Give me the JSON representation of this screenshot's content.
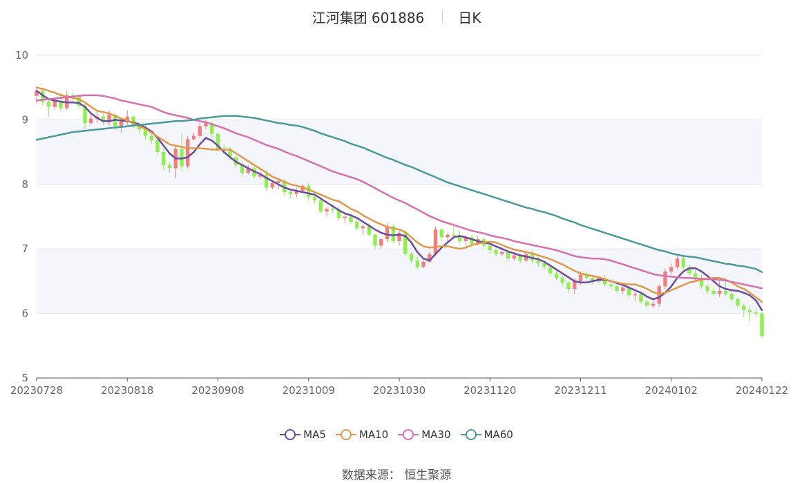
{
  "title": {
    "name": "江河集团 601886",
    "period": "日K"
  },
  "source": "数据来源： 恒生聚源",
  "colors": {
    "up": "#f08080",
    "down": "#90ee50",
    "ma5": "#6a4ba0",
    "ma10": "#e0984a",
    "ma30": "#d770b0",
    "ma60": "#4a9a9a",
    "band": "#f4f6fb",
    "grid": "#e3e7ef",
    "axis": "#555555",
    "label": "#666666"
  },
  "legend": [
    {
      "key": "ma5",
      "label": "MA5"
    },
    {
      "key": "ma10",
      "label": "MA10"
    },
    {
      "key": "ma30",
      "label": "MA30"
    },
    {
      "key": "ma60",
      "label": "MA60"
    }
  ],
  "chart_data": {
    "type": "candlestick",
    "ylim": [
      5,
      10
    ],
    "yticks": [
      5,
      6,
      7,
      8,
      9,
      10
    ],
    "x_tick_labels": [
      "20230728",
      "20230818",
      "20230908",
      "20231009",
      "20231030",
      "20231120",
      "20231211",
      "20240102",
      "20240122"
    ],
    "x_tick_index": [
      0,
      15,
      30,
      45,
      60,
      75,
      90,
      105,
      120
    ],
    "grid": true,
    "legend_position": "bottom",
    "ohlc": [
      [
        9.37,
        9.5,
        9.25,
        9.45
      ],
      [
        9.45,
        9.48,
        9.22,
        9.28
      ],
      [
        9.28,
        9.32,
        9.05,
        9.2
      ],
      [
        9.2,
        9.35,
        9.15,
        9.3
      ],
      [
        9.3,
        9.42,
        9.12,
        9.18
      ],
      [
        9.18,
        9.45,
        9.15,
        9.38
      ],
      [
        9.38,
        9.42,
        9.25,
        9.35
      ],
      [
        9.35,
        9.4,
        9.18,
        9.22
      ],
      [
        9.22,
        9.25,
        8.85,
        8.95
      ],
      [
        8.95,
        9.08,
        8.92,
        9.02
      ],
      [
        9.02,
        9.12,
        8.95,
        9.05
      ],
      [
        9.05,
        9.1,
        8.92,
        8.96
      ],
      [
        8.96,
        9.15,
        8.9,
        9.08
      ],
      [
        9.08,
        9.1,
        8.85,
        8.9
      ],
      [
        8.9,
        9.02,
        8.8,
        8.98
      ],
      [
        8.98,
        9.15,
        8.92,
        9.05
      ],
      [
        9.05,
        9.08,
        8.88,
        8.92
      ],
      [
        8.92,
        8.95,
        8.78,
        8.85
      ],
      [
        8.85,
        8.92,
        8.7,
        8.75
      ],
      [
        8.75,
        8.82,
        8.62,
        8.68
      ],
      [
        8.68,
        8.72,
        8.45,
        8.5
      ],
      [
        8.5,
        8.55,
        8.22,
        8.3
      ],
      [
        8.3,
        8.35,
        8.18,
        8.25
      ],
      [
        8.25,
        8.6,
        8.1,
        8.55
      ],
      [
        8.55,
        8.78,
        8.2,
        8.28
      ],
      [
        8.28,
        8.75,
        8.25,
        8.7
      ],
      [
        8.7,
        8.8,
        8.68,
        8.75
      ],
      [
        8.75,
        8.95,
        8.72,
        8.9
      ],
      [
        8.9,
        9.0,
        8.85,
        8.95
      ],
      [
        8.95,
        8.98,
        8.72,
        8.78
      ],
      [
        8.78,
        8.82,
        8.5,
        8.55
      ],
      [
        8.55,
        8.62,
        8.48,
        8.52
      ],
      [
        8.52,
        8.58,
        8.38,
        8.42
      ],
      [
        8.42,
        8.45,
        8.25,
        8.3
      ],
      [
        8.3,
        8.35,
        8.12,
        8.18
      ],
      [
        8.18,
        8.3,
        8.15,
        8.25
      ],
      [
        8.25,
        8.28,
        8.08,
        8.12
      ],
      [
        8.12,
        8.2,
        8.08,
        8.15
      ],
      [
        8.15,
        8.22,
        7.9,
        7.95
      ],
      [
        7.95,
        8.05,
        7.92,
        8.02
      ],
      [
        8.02,
        8.1,
        7.92,
        8.05
      ],
      [
        8.05,
        8.08,
        7.82,
        7.88
      ],
      [
        7.88,
        7.92,
        7.78,
        7.85
      ],
      [
        7.85,
        7.95,
        7.8,
        7.9
      ],
      [
        7.9,
        8.0,
        7.88,
        7.98
      ],
      [
        7.98,
        8.02,
        7.75,
        7.8
      ],
      [
        7.8,
        7.85,
        7.7,
        7.75
      ],
      [
        7.75,
        7.78,
        7.55,
        7.58
      ],
      [
        7.58,
        7.65,
        7.5,
        7.62
      ],
      [
        7.62,
        7.7,
        7.55,
        7.6
      ],
      [
        7.6,
        7.65,
        7.45,
        7.48
      ],
      [
        7.48,
        7.55,
        7.4,
        7.5
      ],
      [
        7.5,
        7.55,
        7.38,
        7.42
      ],
      [
        7.42,
        7.48,
        7.28,
        7.32
      ],
      [
        7.32,
        7.38,
        7.22,
        7.35
      ],
      [
        7.35,
        7.4,
        7.2,
        7.22
      ],
      [
        7.22,
        7.25,
        7.0,
        7.05
      ],
      [
        7.05,
        7.18,
        7.0,
        7.15
      ],
      [
        7.15,
        7.4,
        7.1,
        7.35
      ],
      [
        7.35,
        7.38,
        7.08,
        7.12
      ],
      [
        7.12,
        7.3,
        7.05,
        7.25
      ],
      [
        7.25,
        7.28,
        6.88,
        6.92
      ],
      [
        6.92,
        6.95,
        6.78,
        6.82
      ],
      [
        6.82,
        6.88,
        6.68,
        6.72
      ],
      [
        6.72,
        6.85,
        6.7,
        6.8
      ],
      [
        6.8,
        6.95,
        6.78,
        6.92
      ],
      [
        6.92,
        7.35,
        6.9,
        7.3
      ],
      [
        7.3,
        7.32,
        7.12,
        7.18
      ],
      [
        7.18,
        7.25,
        7.1,
        7.22
      ],
      [
        7.22,
        7.35,
        7.15,
        7.2
      ],
      [
        7.2,
        7.28,
        7.08,
        7.12
      ],
      [
        7.12,
        7.2,
        7.05,
        7.18
      ],
      [
        7.18,
        7.22,
        7.02,
        7.08
      ],
      [
        7.08,
        7.2,
        7.05,
        7.15
      ],
      [
        7.15,
        7.18,
        7.0,
        7.05
      ],
      [
        7.05,
        7.08,
        6.92,
        6.98
      ],
      [
        6.98,
        7.05,
        6.88,
        6.92
      ],
      [
        6.92,
        7.02,
        6.88,
        6.95
      ],
      [
        6.95,
        6.98,
        6.8,
        6.85
      ],
      [
        6.85,
        6.95,
        6.82,
        6.9
      ],
      [
        6.9,
        6.92,
        6.78,
        6.82
      ],
      [
        6.82,
        6.95,
        6.8,
        6.92
      ],
      [
        6.92,
        6.98,
        6.78,
        6.82
      ],
      [
        6.82,
        6.88,
        6.72,
        6.78
      ],
      [
        6.78,
        6.82,
        6.68,
        6.72
      ],
      [
        6.72,
        6.75,
        6.58,
        6.62
      ],
      [
        6.62,
        6.68,
        6.52,
        6.55
      ],
      [
        6.55,
        6.6,
        6.42,
        6.48
      ],
      [
        6.48,
        6.5,
        6.32,
        6.38
      ],
      [
        6.38,
        6.55,
        6.3,
        6.5
      ],
      [
        6.5,
        6.65,
        6.45,
        6.6
      ],
      [
        6.6,
        6.65,
        6.5,
        6.55
      ],
      [
        6.55,
        6.6,
        6.45,
        6.5
      ],
      [
        6.5,
        6.58,
        6.48,
        6.55
      ],
      [
        6.55,
        6.6,
        6.42,
        6.45
      ],
      [
        6.45,
        6.5,
        6.38,
        6.42
      ],
      [
        6.42,
        6.48,
        6.32,
        6.35
      ],
      [
        6.35,
        6.45,
        6.3,
        6.4
      ],
      [
        6.4,
        6.42,
        6.25,
        6.28
      ],
      [
        6.28,
        6.35,
        6.2,
        6.3
      ],
      [
        6.3,
        6.32,
        6.15,
        6.18
      ],
      [
        6.18,
        6.22,
        6.08,
        6.12
      ],
      [
        6.12,
        6.2,
        6.08,
        6.15
      ],
      [
        6.15,
        6.45,
        6.1,
        6.42
      ],
      [
        6.42,
        6.7,
        6.38,
        6.65
      ],
      [
        6.65,
        6.78,
        6.6,
        6.72
      ],
      [
        6.72,
        6.92,
        6.68,
        6.85
      ],
      [
        6.85,
        6.88,
        6.68,
        6.72
      ],
      [
        6.72,
        6.75,
        6.58,
        6.62
      ],
      [
        6.62,
        6.68,
        6.5,
        6.55
      ],
      [
        6.55,
        6.6,
        6.38,
        6.42
      ],
      [
        6.42,
        6.45,
        6.3,
        6.35
      ],
      [
        6.35,
        6.4,
        6.28,
        6.3
      ],
      [
        6.3,
        6.5,
        6.25,
        6.35
      ],
      [
        6.35,
        6.55,
        6.28,
        6.3
      ],
      [
        6.3,
        6.35,
        6.18,
        6.22
      ],
      [
        6.22,
        6.25,
        6.08,
        6.12
      ],
      [
        6.12,
        6.15,
        5.95,
        6.05
      ],
      [
        6.05,
        6.12,
        5.88,
        6.02
      ],
      [
        6.02,
        6.08,
        5.95,
        6.0
      ],
      [
        6.0,
        6.02,
        5.62,
        5.65
      ]
    ],
    "series": [
      {
        "name": "MA5",
        "key": "ma5",
        "values": [
          9.45,
          9.38,
          9.32,
          9.3,
          9.28,
          9.27,
          9.27,
          9.26,
          9.2,
          9.1,
          9.03,
          8.98,
          8.98,
          9.0,
          8.99,
          8.98,
          8.96,
          8.93,
          8.88,
          8.82,
          8.72,
          8.6,
          8.48,
          8.4,
          8.4,
          8.42,
          8.5,
          8.62,
          8.72,
          8.68,
          8.6,
          8.5,
          8.42,
          8.35,
          8.3,
          8.25,
          8.2,
          8.16,
          8.1,
          8.05,
          8.0,
          7.95,
          7.92,
          7.9,
          7.88,
          7.86,
          7.84,
          7.78,
          7.72,
          7.66,
          7.6,
          7.55,
          7.52,
          7.48,
          7.42,
          7.36,
          7.3,
          7.25,
          7.22,
          7.21,
          7.22,
          7.2,
          7.1,
          6.95,
          6.85,
          6.82,
          6.92,
          7.02,
          7.1,
          7.18,
          7.2,
          7.18,
          7.15,
          7.12,
          7.1,
          7.08,
          7.04,
          7.0,
          6.96,
          6.93,
          6.9,
          6.88,
          6.86,
          6.84,
          6.8,
          6.74,
          6.68,
          6.62,
          6.56,
          6.5,
          6.48,
          6.48,
          6.5,
          6.52,
          6.52,
          6.5,
          6.47,
          6.44,
          6.4,
          6.36,
          6.32,
          6.26,
          6.22,
          6.25,
          6.32,
          6.42,
          6.55,
          6.65,
          6.7,
          6.7,
          6.65,
          6.58,
          6.5,
          6.42,
          6.38,
          6.36,
          6.35,
          6.32,
          6.28,
          6.2,
          6.05
        ]
      },
      {
        "name": "MA10",
        "key": "ma10",
        "values": [
          9.5,
          9.48,
          9.45,
          9.42,
          9.38,
          9.36,
          9.34,
          9.32,
          9.27,
          9.2,
          9.14,
          9.12,
          9.1,
          9.06,
          9.02,
          8.99,
          8.95,
          8.9,
          8.86,
          8.8,
          8.74,
          8.68,
          8.62,
          8.6,
          8.58,
          8.56,
          8.56,
          8.56,
          8.55,
          8.54,
          8.54,
          8.54,
          8.54,
          8.48,
          8.42,
          8.36,
          8.3,
          8.24,
          8.18,
          8.12,
          8.08,
          8.04,
          8.0,
          7.98,
          7.95,
          7.92,
          7.88,
          7.84,
          7.8,
          7.76,
          7.74,
          7.68,
          7.62,
          7.58,
          7.52,
          7.47,
          7.42,
          7.38,
          7.34,
          7.32,
          7.3,
          7.26,
          7.18,
          7.1,
          7.04,
          7.02,
          7.03,
          7.04,
          7.04,
          7.02,
          7.0,
          7.02,
          7.06,
          7.08,
          7.1,
          7.11,
          7.1,
          7.06,
          7.02,
          6.99,
          6.97,
          6.95,
          6.93,
          6.9,
          6.87,
          6.84,
          6.8,
          6.76,
          6.71,
          6.66,
          6.62,
          6.6,
          6.58,
          6.56,
          6.53,
          6.5,
          6.48,
          6.46,
          6.45,
          6.45,
          6.42,
          6.38,
          6.33,
          6.3,
          6.32,
          6.36,
          6.4,
          6.44,
          6.48,
          6.5,
          6.52,
          6.54,
          6.55,
          6.55,
          6.52,
          6.48,
          6.42,
          6.38,
          6.32,
          6.25,
          6.18
        ]
      },
      {
        "name": "MA30",
        "key": "ma30",
        "values": [
          9.3,
          9.31,
          9.32,
          9.33,
          9.34,
          9.35,
          9.36,
          9.37,
          9.38,
          9.38,
          9.38,
          9.37,
          9.35,
          9.33,
          9.3,
          9.28,
          9.26,
          9.24,
          9.22,
          9.2,
          9.16,
          9.12,
          9.09,
          9.07,
          9.05,
          9.03,
          9.0,
          8.98,
          8.96,
          8.93,
          8.9,
          8.87,
          8.83,
          8.79,
          8.76,
          8.73,
          8.69,
          8.65,
          8.61,
          8.58,
          8.55,
          8.51,
          8.47,
          8.44,
          8.4,
          8.36,
          8.32,
          8.28,
          8.24,
          8.2,
          8.17,
          8.14,
          8.11,
          8.08,
          8.04,
          7.99,
          7.94,
          7.89,
          7.84,
          7.79,
          7.75,
          7.71,
          7.66,
          7.61,
          7.56,
          7.51,
          7.47,
          7.43,
          7.4,
          7.37,
          7.34,
          7.31,
          7.28,
          7.26,
          7.24,
          7.21,
          7.19,
          7.17,
          7.15,
          7.12,
          7.1,
          7.08,
          7.06,
          7.04,
          7.02,
          7.0,
          6.98,
          6.95,
          6.92,
          6.89,
          6.87,
          6.86,
          6.85,
          6.85,
          6.84,
          6.82,
          6.79,
          6.76,
          6.73,
          6.7,
          6.67,
          6.64,
          6.61,
          6.59,
          6.58,
          6.57,
          6.56,
          6.55,
          6.55,
          6.54,
          6.54,
          6.53,
          6.53,
          6.52,
          6.51,
          6.49,
          6.47,
          6.45,
          6.43,
          6.41,
          6.39
        ]
      },
      {
        "name": "MA60",
        "key": "ma60",
        "values": [
          8.69,
          8.71,
          8.73,
          8.75,
          8.77,
          8.79,
          8.81,
          8.82,
          8.83,
          8.84,
          8.85,
          8.86,
          8.87,
          8.88,
          8.89,
          8.9,
          8.91,
          8.92,
          8.93,
          8.94,
          8.95,
          8.96,
          8.97,
          8.98,
          8.98,
          8.99,
          9.0,
          9.02,
          9.03,
          9.04,
          9.05,
          9.06,
          9.06,
          9.06,
          9.05,
          9.04,
          9.03,
          9.01,
          8.99,
          8.97,
          8.95,
          8.94,
          8.92,
          8.91,
          8.89,
          8.86,
          8.83,
          8.79,
          8.76,
          8.73,
          8.7,
          8.67,
          8.63,
          8.6,
          8.57,
          8.53,
          8.49,
          8.45,
          8.41,
          8.38,
          8.34,
          8.3,
          8.27,
          8.23,
          8.19,
          8.15,
          8.11,
          8.07,
          8.03,
          8.0,
          7.97,
          7.94,
          7.91,
          7.88,
          7.85,
          7.82,
          7.79,
          7.76,
          7.73,
          7.7,
          7.67,
          7.64,
          7.62,
          7.59,
          7.57,
          7.54,
          7.51,
          7.47,
          7.44,
          7.41,
          7.37,
          7.34,
          7.31,
          7.28,
          7.25,
          7.22,
          7.19,
          7.16,
          7.13,
          7.1,
          7.07,
          7.04,
          7.01,
          6.98,
          6.96,
          6.93,
          6.91,
          6.89,
          6.88,
          6.87,
          6.85,
          6.83,
          6.81,
          6.79,
          6.77,
          6.76,
          6.74,
          6.73,
          6.71,
          6.69,
          6.64
        ]
      }
    ]
  }
}
